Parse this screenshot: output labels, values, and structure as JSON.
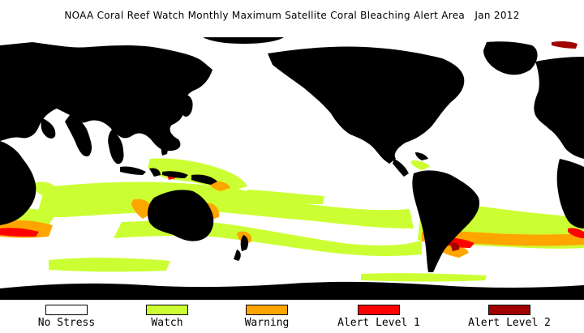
{
  "title": "NOAA Coral Reef Watch Monthly Maximum Satellite Coral Bleaching Alert Area   Jan 2012",
  "colors": {
    "land": "#000000",
    "no_stress": "#ffffff",
    "watch": "#ccff33",
    "warning": "#ffa500",
    "alert1": "#ff0000",
    "alert2": "#a00000"
  },
  "legend": [
    {
      "label": "No Stress",
      "color": "#ffffff"
    },
    {
      "label": "Watch",
      "color": "#ccff33"
    },
    {
      "label": "Warning",
      "color": "#ffa500"
    },
    {
      "label": "Alert Level 1",
      "color": "#ff0000"
    },
    {
      "label": "Alert Level 2",
      "color": "#a00000"
    }
  ]
}
